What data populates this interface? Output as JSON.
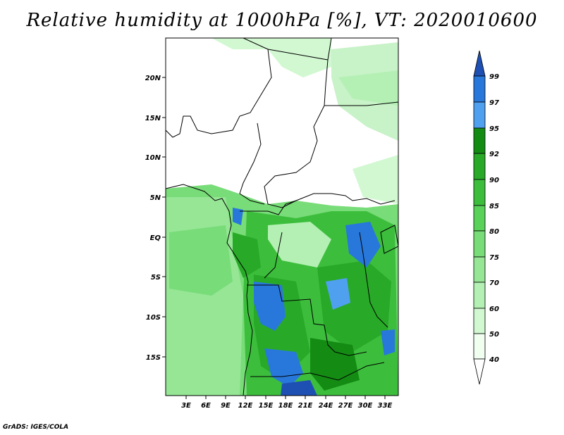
{
  "title": "Relative humidity at 1000hPa [%], VT: 2020010600",
  "footer": "GrADS: IGES/COLA",
  "y_ticks": [
    "20N",
    "15N",
    "10N",
    "5N",
    "EQ",
    "5S",
    "10S",
    "15S"
  ],
  "x_ticks": [
    "3E",
    "6E",
    "9E",
    "12E",
    "15E",
    "18E",
    "21E",
    "24E",
    "27E",
    "30E",
    "33E"
  ],
  "colorbar_labels": [
    "99",
    "97",
    "95",
    "92",
    "90",
    "85",
    "80",
    "75",
    "70",
    "60",
    "50",
    "40"
  ],
  "colorbar_colors": [
    "#1e50b4",
    "#2878dc",
    "#50a0f0",
    "#148c14",
    "#28aa28",
    "#3cbe3c",
    "#5ad25a",
    "#78dc78",
    "#96e696",
    "#b4f0b4",
    "#d2f8d2",
    "#f0fff0"
  ]
}
